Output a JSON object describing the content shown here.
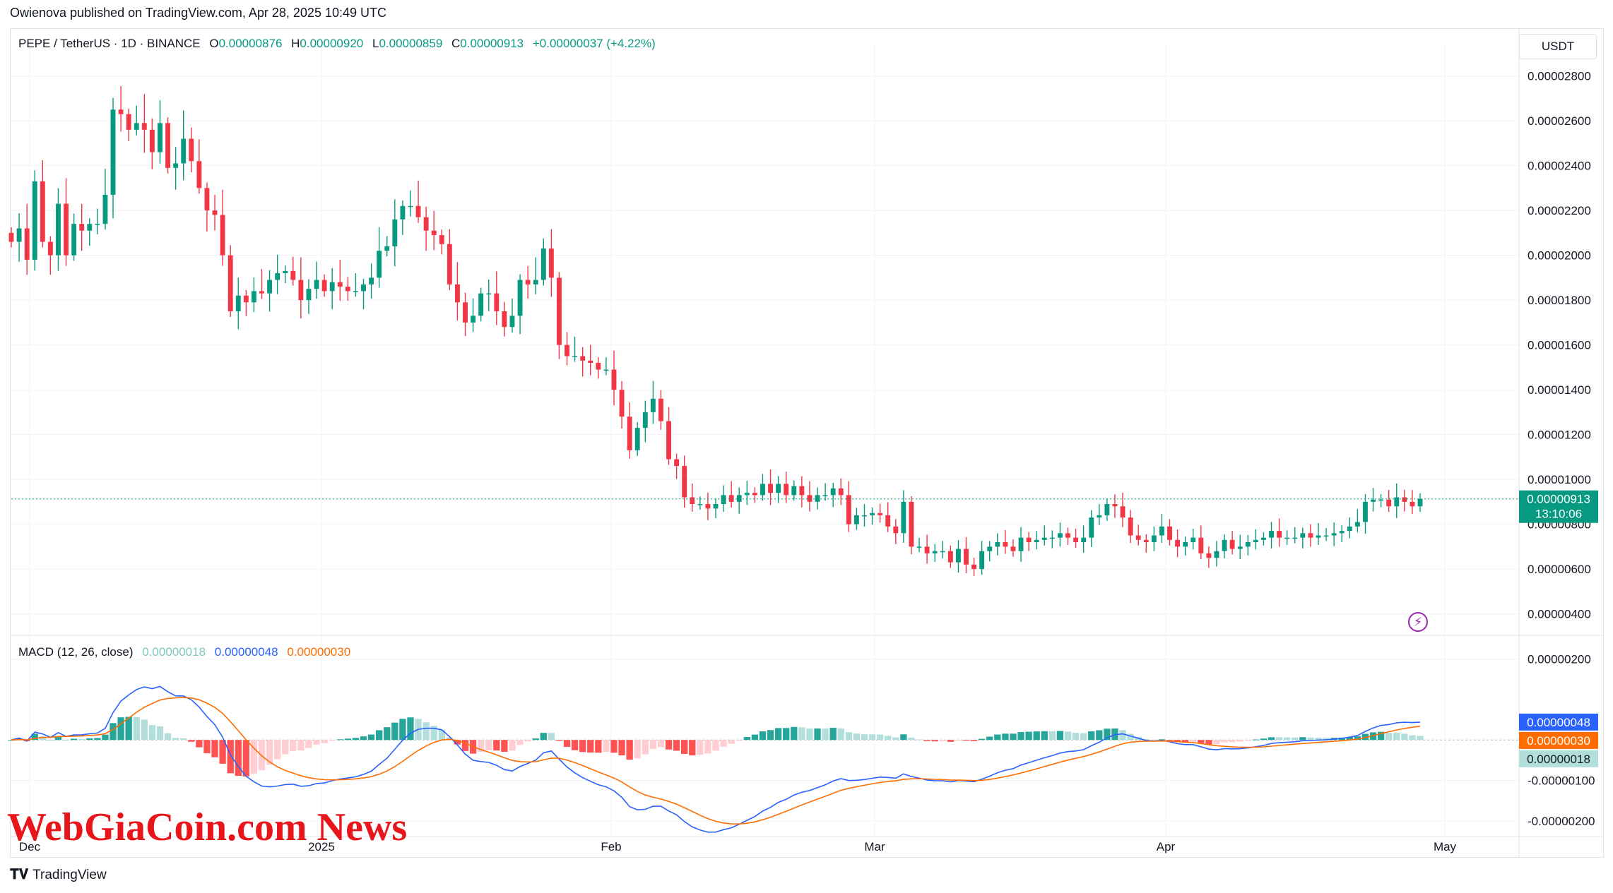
{
  "publisher_line": "Owienova published on TradingView.com, Apr 28, 2025 10:49 UTC",
  "legend": {
    "symbol": "PEPE / TetherUS · 1D · BINANCE",
    "o_label": "O",
    "o_value": "0.00000876",
    "h_label": "H",
    "h_value": "0.00000920",
    "l_label": "L",
    "l_value": "0.00000859",
    "c_label": "C",
    "c_value": "0.00000913",
    "change": "+0.00000037 (+4.22%)"
  },
  "unit": "USDT",
  "macd_legend": {
    "name": "MACD (12, 26, close)",
    "histogram": "0.00000018",
    "macd": "0.00000048",
    "signal": "0.00000030"
  },
  "price_tag": {
    "value": "0.00000913",
    "countdown": "13:10:06"
  },
  "macd_tags": [
    "0.00000048",
    "0.00000030",
    "0.00000018"
  ],
  "price_axis_ticks": [
    "0.00002800",
    "0.00002600",
    "0.00002400",
    "0.00002200",
    "0.00002000",
    "0.00001800",
    "0.00001600",
    "0.00001400",
    "0.00001200",
    "0.00001000",
    "0.00000800",
    "0.00000600",
    "0.00000400"
  ],
  "macd_axis_ticks": [
    "0.00000200",
    "-0.00000100",
    "-0.00000200"
  ],
  "x_axis_labels": [
    "Dec",
    "2025",
    "Feb",
    "Mar",
    "Apr",
    "May"
  ],
  "watermark": "WebGiaCoin.com News",
  "footer_brand": "TradingView",
  "colors": {
    "up": "#089981",
    "down": "#f23645",
    "macd_line": "#2962ff",
    "signal_line": "#ff6d00",
    "hist_up_strong": "#26a69a",
    "hist_up_weak": "#b2dfdb",
    "hist_down_strong": "#ff5252",
    "hist_down_weak": "#ffcdd2"
  },
  "chart_data": [
    {
      "type": "candlestick",
      "title": "PEPE / TetherUS · 1D · BINANCE",
      "ylim": [
        3.2e-06,
        2.95e-05
      ],
      "x_labels": [
        "Dec",
        "2025",
        "Feb",
        "Mar",
        "Apr",
        "May"
      ],
      "closes": [
        20.6,
        21.2,
        19.8,
        23.3,
        20.6,
        20.0,
        22.3,
        20.0,
        21.4,
        21.1,
        21.4,
        21.4,
        22.7,
        26.5,
        26.3,
        25.6,
        25.9,
        25.6,
        24.6,
        25.9,
        23.9,
        24.1,
        25.2,
        24.2,
        23.0,
        22.0,
        21.8,
        20.0,
        17.5,
        18.2,
        17.9,
        18.4,
        18.3,
        18.9,
        19.2,
        19.3,
        18.9,
        18.0,
        18.5,
        18.9,
        18.4,
        18.8,
        18.6,
        18.4,
        18.4,
        18.7,
        19.0,
        20.2,
        20.4,
        21.6,
        22.2,
        22.2,
        21.7,
        21.1,
        20.9,
        20.5,
        18.7,
        17.9,
        17.0,
        17.3,
        18.3,
        18.3,
        17.5,
        16.8,
        17.3,
        18.9,
        18.7,
        18.9,
        20.3,
        19.0,
        16.0,
        15.5,
        15.5,
        15.3,
        15.2,
        14.9,
        14.9,
        14.0,
        12.8,
        11.3,
        12.3,
        13.0,
        13.6,
        12.6,
        10.9,
        10.6,
        9.2,
        8.9,
        8.9,
        8.7,
        8.9,
        9.3,
        9.0,
        9.3,
        9.4,
        9.3,
        9.8,
        9.4,
        9.8,
        9.3,
        9.7,
        9.3,
        9.0,
        9.3,
        9.3,
        9.6,
        9.3,
        8.0,
        8.4,
        8.4,
        8.5,
        8.4,
        7.9,
        7.6,
        9.0,
        7.0,
        7.0,
        6.7,
        6.8,
        6.8,
        6.3,
        6.9,
        6.2,
        6.0,
        6.8,
        7.0,
        7.2,
        7.0,
        6.8,
        7.4,
        7.2,
        7.3,
        7.4,
        7.4,
        7.6,
        7.4,
        7.2,
        7.4,
        8.3,
        8.4,
        8.9,
        8.8,
        8.3,
        7.5,
        7.3,
        7.2,
        7.5,
        7.9,
        7.3,
        7.0,
        7.2,
        7.4,
        6.7,
        6.5,
        6.8,
        7.3,
        6.9,
        7.0,
        7.2,
        7.3,
        7.4,
        7.7,
        7.4,
        7.4,
        7.4,
        7.6,
        7.4,
        7.5,
        7.5,
        7.6,
        7.7,
        7.9,
        8.1,
        9.0,
        9.1,
        9.1,
        8.8,
        9.2,
        9.0,
        8.8,
        9.13
      ]
    },
    {
      "type": "line",
      "title": "MACD (12, 26, close)",
      "series_names": [
        "0.00000048",
        "0.00000030",
        "0.00000018"
      ],
      "ylim": [
        -2.3e-06,
        2.5e-06
      ]
    }
  ]
}
